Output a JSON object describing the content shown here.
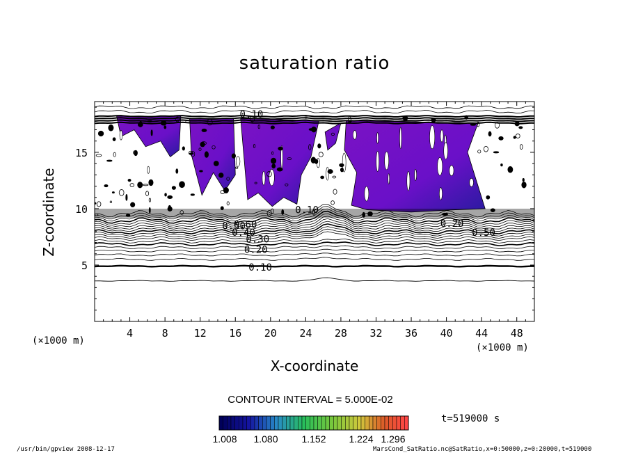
{
  "chart_data": {
    "type": "contour",
    "title": "saturation ratio",
    "xlabel": "X-coordinate",
    "ylabel": "Z-coordinate",
    "x_unit": "(×1000 m)",
    "z_unit": "(×1000 m)",
    "xlim": [
      0,
      50
    ],
    "ylim": [
      0,
      19.5
    ],
    "x_ticks": [
      4,
      8,
      12,
      16,
      20,
      24,
      28,
      32,
      36,
      40,
      44,
      48
    ],
    "y_ticks": [
      5,
      10,
      15
    ],
    "contour_labels": [
      {
        "value": "0.10",
        "x": 17.5,
        "z": 4.8
      },
      {
        "value": "0.20",
        "x": 17.0,
        "z": 6.4
      },
      {
        "value": "0.30",
        "x": 17.2,
        "z": 7.3
      },
      {
        "value": "0.40",
        "x": 15.6,
        "z": 7.9
      },
      {
        "value": "0.50",
        "x": 14.5,
        "z": 8.5
      },
      {
        "value": "0.60",
        "x": 15.8,
        "z": 8.6
      },
      {
        "value": "0.50",
        "x": 42.9,
        "z": 7.9
      },
      {
        "value": "0.20",
        "x": 39.3,
        "z": 8.7
      },
      {
        "value": "0.10",
        "x": 16.5,
        "z": 18.4
      },
      {
        "value": "0.10",
        "x": 22.8,
        "z": 9.9
      }
    ],
    "contour_interval": "CONTOUR INTERVAL = 5.000E-02",
    "colorbar": {
      "ticks": [
        "1.008",
        "1.080",
        "1.152",
        "1.224",
        "1.296"
      ],
      "min_color": "#000060",
      "max_color": "#ff4040"
    },
    "time_label": "t=519000 s",
    "fill_color": "#7a12c4"
  },
  "footer": {
    "left": "/usr/bin/gpview   2008-12-17",
    "right": "MarsCond_SatRatio.nc@SatRatio,x=0:50000,z=0:20000,t=519000"
  }
}
